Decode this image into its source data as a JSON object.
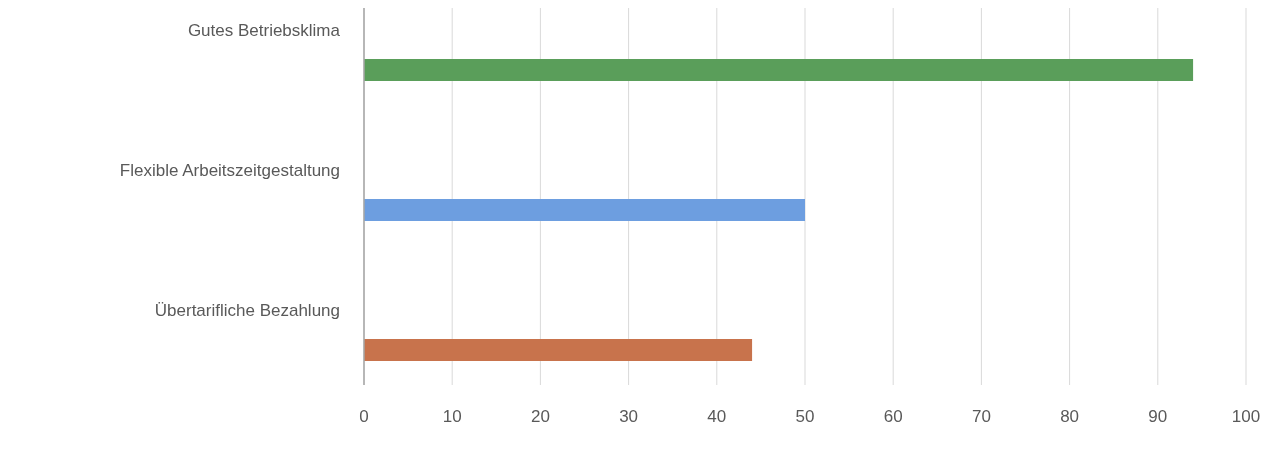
{
  "chart_data": {
    "type": "bar",
    "orientation": "horizontal",
    "categories": [
      "Gutes Betriebsklima",
      "Flexible Arbeitszeitgestaltung",
      "Übertarifliche Bezahlung"
    ],
    "values": [
      94,
      50,
      44
    ],
    "colors": [
      "#5a9e5a",
      "#6d9ee0",
      "#c8734c"
    ],
    "xlim": [
      0,
      100
    ],
    "xticks": [
      0,
      10,
      20,
      30,
      40,
      50,
      60,
      70,
      80,
      90,
      100
    ],
    "grid": "x"
  }
}
